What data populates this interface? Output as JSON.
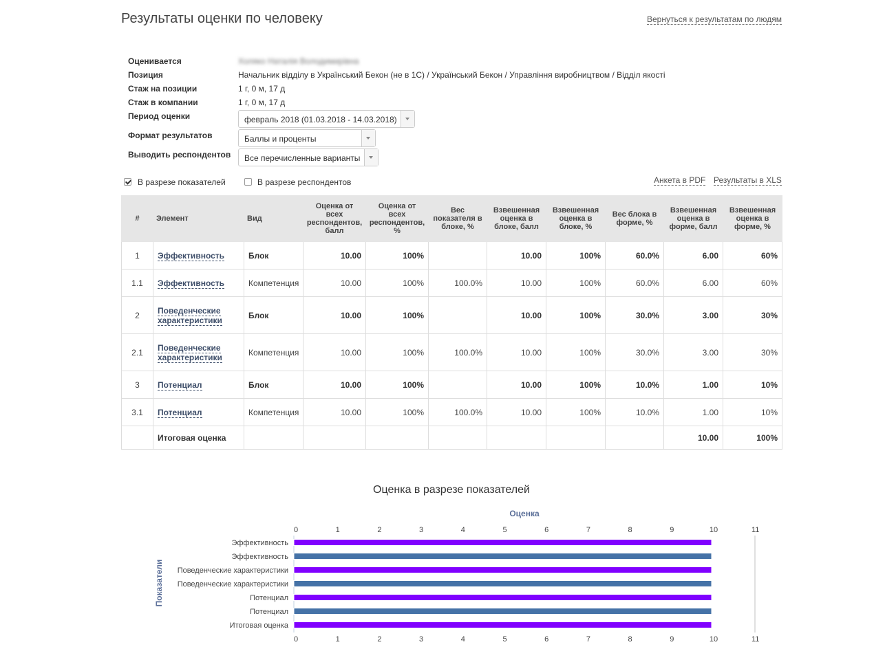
{
  "header": {
    "title": "Результаты оценки по человеку",
    "back_link": "Вернуться к результатам по людям"
  },
  "info": {
    "evaluated_label": "Оценивается",
    "evaluated_value": "Холяко Наталія Володимирівна",
    "position_label": "Позиция",
    "position_value": "Начальник відділу в Український Бекон (не в 1С) / Український Бекон / Управління виробництвом / Відділ якості",
    "tenure_position_label": "Стаж на позиции",
    "tenure_position_value": "1 г, 0 м, 17 д",
    "tenure_company_label": "Стаж в компании",
    "tenure_company_value": "1 г, 0 м, 17 д",
    "period_label": "Период оценки",
    "period_value": "февраль 2018 (01.03.2018 - 14.03.2018)",
    "format_label": "Формат результатов",
    "format_value": "Баллы и проценты",
    "respondents_label": "Выводить респондентов",
    "respondents_value": "Все перечисленные варианты"
  },
  "options": {
    "by_indicators_label": "В разрезе показателей",
    "by_indicators_checked": true,
    "by_respondents_label": "В разрезе респондентов",
    "by_respondents_checked": false,
    "pdf_link": "Анкета в PDF",
    "xls_link": "Результаты в XLS"
  },
  "table": {
    "headers": {
      "num": "#",
      "element": "Элемент",
      "type": "Вид",
      "score_all": "Оценка от всех респондентов, балл",
      "score_all_pct": "Оценка от всех респондентов, %",
      "weight_in_block": "Вес показателя в блоке, %",
      "weighted_block_score": "Взвешенная оценка в блоке, балл",
      "weighted_block_pct": "Взвешенная оценка в блоке, %",
      "block_weight_form": "Вес блока в форме, %",
      "weighted_form_score": "Взвешенная оценка в форме, балл",
      "weighted_form_pct": "Взвешенная оценка в форме, %"
    },
    "rows": [
      {
        "num": "1",
        "element": "Эффективность",
        "type": "Блок",
        "score": "10.00",
        "score_pct": "100%",
        "weight": "",
        "wb_score": "10.00",
        "wb_pct": "100%",
        "bw_form": "60.0%",
        "wf_score": "6.00",
        "wf_pct": "60%"
      },
      {
        "num": "1.1",
        "element": "Эффективность",
        "type": "Компетенция",
        "score": "10.00",
        "score_pct": "100%",
        "weight": "100.0%",
        "wb_score": "10.00",
        "wb_pct": "100%",
        "bw_form": "60.0%",
        "wf_score": "6.00",
        "wf_pct": "60%"
      },
      {
        "num": "2",
        "element": "Поведенческие характеристики",
        "type": "Блок",
        "score": "10.00",
        "score_pct": "100%",
        "weight": "",
        "wb_score": "10.00",
        "wb_pct": "100%",
        "bw_form": "30.0%",
        "wf_score": "3.00",
        "wf_pct": "30%"
      },
      {
        "num": "2.1",
        "element": "Поведенческие характеристики",
        "type": "Компетенция",
        "score": "10.00",
        "score_pct": "100%",
        "weight": "100.0%",
        "wb_score": "10.00",
        "wb_pct": "100%",
        "bw_form": "30.0%",
        "wf_score": "3.00",
        "wf_pct": "30%"
      },
      {
        "num": "3",
        "element": "Потенциал",
        "type": "Блок",
        "score": "10.00",
        "score_pct": "100%",
        "weight": "",
        "wb_score": "10.00",
        "wb_pct": "100%",
        "bw_form": "10.0%",
        "wf_score": "1.00",
        "wf_pct": "10%"
      },
      {
        "num": "3.1",
        "element": "Потенциал",
        "type": "Компетенция",
        "score": "10.00",
        "score_pct": "100%",
        "weight": "100.0%",
        "wb_score": "10.00",
        "wb_pct": "100%",
        "bw_form": "10.0%",
        "wf_score": "1.00",
        "wf_pct": "10%"
      }
    ],
    "total": {
      "label": "Итоговая оценка",
      "wf_score": "10.00",
      "wf_pct": "100%"
    }
  },
  "chart_title": "Оценка в разрезе показателей",
  "chart_data": {
    "type": "bar",
    "orientation": "horizontal",
    "title": "Оценка",
    "xlabel": "Оценка",
    "ylabel": "Показатели",
    "categories": [
      "Эффективность",
      "Эффективность",
      "Поведенческие характеристики",
      "Поведенческие характеристики",
      "Потенциал",
      "Потенциал",
      "Итоговая оценка"
    ],
    "values": [
      10,
      10,
      10,
      10,
      10,
      10,
      10
    ],
    "bar_colors": [
      "#8000ff",
      "#4572a7",
      "#8000ff",
      "#4572a7",
      "#8000ff",
      "#4572a7",
      "#8000ff"
    ],
    "xlim": [
      0,
      11
    ],
    "ticks": [
      "0",
      "1",
      "2",
      "3",
      "4",
      "5",
      "6",
      "7",
      "8",
      "9",
      "10",
      "11"
    ],
    "axis_top_and_bottom": true
  }
}
